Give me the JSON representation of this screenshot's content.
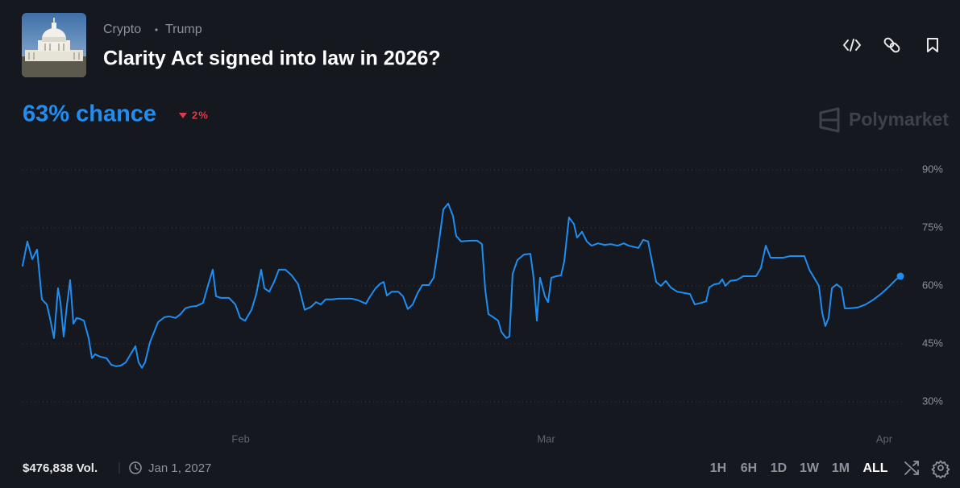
{
  "header": {
    "breadcrumbs": [
      "Crypto",
      "Trump"
    ],
    "title": "Clarity Act signed into law in 2026?"
  },
  "chance": "63% chance",
  "change": "2%",
  "brand": "Polymarket",
  "chart_data": {
    "type": "line",
    "x": [
      12.0,
      12.44,
      12.89,
      13.33,
      13.77,
      14.22,
      14.51,
      14.88,
      15.25,
      15.47,
      15.77,
      16.06,
      16.36,
      16.66,
      16.95,
      17.25,
      17.62,
      18.06,
      18.36,
      18.65,
      19.09,
      19.69,
      20.13,
      20.57,
      21.02,
      21.46,
      21.9,
      22.35,
      22.64,
      22.94,
      23.23,
      23.68,
      24.12,
      24.42,
      25.01,
      25.45,
      26.04,
      26.48,
      26.93,
      27.37,
      27.96,
      28.55,
      28.99,
      29.44,
      29.74,
      30.18,
      30.92,
      31.51,
      31.95,
      32.4,
      32.99,
      33.43,
      33.87,
      34.17,
      34.61,
      35.06,
      35.5,
      36.09,
      36.68,
      37.27,
      37.87,
      38.46,
      38.9,
      39.34,
      39.79,
      40.38,
      40.97,
      42.15,
      42.74,
      43.48,
      43.78,
      44.37,
      44.81,
      45.11,
      45.4,
      45.85,
      46.44,
      46.88,
      47.32,
      47.77,
      48.21,
      48.65,
      49.25,
      49.69,
      50.13,
      50.58,
      51.02,
      51.46,
      51.76,
      52.2,
      53.09,
      53.68,
      54.12,
      54.42,
      54.71,
      55.16,
      55.6,
      55.9,
      56.34,
      56.64,
      56.93,
      57.37,
      57.97,
      58.56,
      58.85,
      59.15,
      59.44,
      59.89,
      60.18,
      60.48,
      60.92,
      61.37,
      61.66,
      62.1,
      62.55,
      62.84,
      63.29,
      63.73,
      64.17,
      64.76,
      65.36,
      65.95,
      66.54,
      67.13,
      67.57,
      68.46,
      68.9,
      69.35,
      69.79,
      70.09,
      70.53,
      70.97,
      71.42,
      72.01,
      73.19,
      73.63,
      74.22,
      74.67,
      74.96,
      75.41,
      75.85,
      76.15,
      76.44,
      76.88,
      77.48,
      78.07,
      79.25,
      79.69,
      80.14,
      80.58,
      81.76,
      82.35,
      83.68,
      84.13,
      84.57,
      85.01,
      85.31,
      85.6,
      85.9,
      86.2,
      86.64,
      87.08,
      87.38,
      87.82,
      88.56,
      89.3,
      90.04,
      90.78,
      91.51,
      92.11,
      92.48
    ],
    "series": [
      {
        "color": "#1f8ef2",
        "values": [
          65.2,
          71.5,
          66.9,
          69.4,
          56.5,
          55.2,
          51.7,
          46.5,
          59.4,
          55.8,
          46.9,
          54.8,
          61.5,
          50.2,
          51.7,
          51.5,
          51.0,
          46.5,
          41.3,
          42.3,
          41.7,
          41.3,
          39.6,
          39.2,
          39.4,
          40.2,
          42.3,
          44.4,
          40.2,
          38.8,
          40.2,
          45.4,
          48.5,
          50.6,
          51.9,
          52.1,
          51.7,
          52.7,
          54.2,
          54.6,
          54.8,
          55.6,
          60.0,
          64.2,
          57.3,
          56.9,
          56.9,
          55.2,
          51.7,
          51.0,
          53.8,
          57.9,
          64.2,
          59.4,
          58.5,
          61.0,
          64.2,
          64.2,
          62.7,
          60.4,
          53.8,
          54.6,
          55.8,
          55.2,
          56.5,
          56.5,
          56.7,
          56.7,
          56.3,
          55.4,
          56.9,
          59.4,
          60.6,
          61.0,
          57.5,
          58.5,
          58.5,
          57.3,
          54.0,
          55.2,
          58.1,
          60.2,
          60.2,
          62.1,
          70.4,
          79.8,
          81.3,
          78.1,
          72.9,
          71.5,
          71.7,
          71.7,
          70.8,
          59.0,
          52.7,
          51.9,
          51.0,
          48.1,
          46.5,
          46.9,
          63.1,
          66.7,
          68.1,
          68.3,
          62.1,
          51.0,
          62.1,
          57.3,
          55.8,
          62.1,
          62.5,
          62.7,
          66.3,
          77.7,
          76.0,
          72.5,
          74.0,
          71.5,
          70.4,
          71.0,
          70.6,
          70.8,
          70.4,
          71.0,
          70.4,
          69.8,
          71.9,
          71.5,
          65.2,
          61.0,
          60.0,
          61.3,
          59.6,
          58.5,
          57.9,
          55.2,
          55.6,
          56.0,
          59.6,
          60.4,
          60.6,
          61.7,
          60.0,
          61.3,
          61.5,
          62.5,
          62.5,
          64.6,
          70.4,
          67.3,
          67.3,
          67.7,
          67.7,
          64.2,
          62.1,
          60.0,
          53.1,
          49.6,
          51.7,
          59.4,
          60.4,
          59.4,
          54.2,
          54.2,
          54.4,
          55.2,
          56.5,
          58.1,
          60.0,
          61.7,
          62.5
        ]
      }
    ],
    "xlim": [
      12,
      92.7
    ],
    "xticks": [
      {
        "value": 32,
        "label": "Feb"
      },
      {
        "value": 60,
        "label": "Mar"
      },
      {
        "value": 91,
        "label": "Apr"
      }
    ],
    "ylim": [
      30,
      90
    ],
    "yticks": [
      {
        "value": 90,
        "label": "90%"
      },
      {
        "value": 75,
        "label": "75%"
      },
      {
        "value": 60,
        "label": "60%"
      },
      {
        "value": 45,
        "label": "45%"
      },
      {
        "value": 30,
        "label": "30%"
      }
    ],
    "grid": true
  },
  "footer": {
    "volume": "$476,838 Vol.",
    "end_date": "Jan 1, 2027",
    "ranges": [
      "1H",
      "6H",
      "1D",
      "1W",
      "1M",
      "ALL"
    ],
    "active_range": "ALL"
  }
}
